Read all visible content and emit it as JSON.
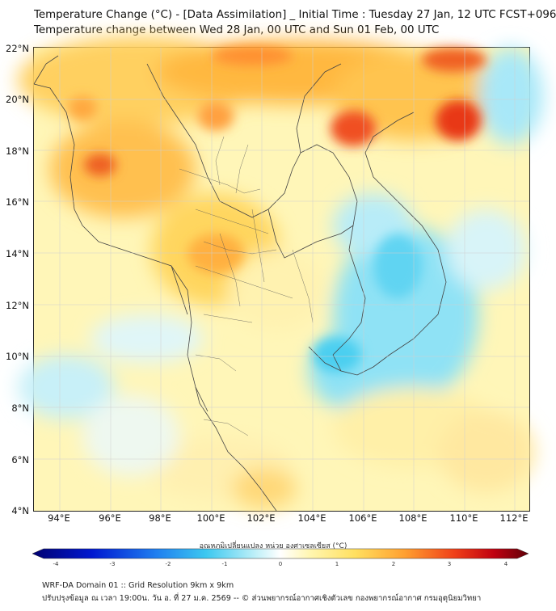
{
  "title_line1": "Temperature Change (°C) - [Data Assimilation] _ Initial Time : Tuesday 27 Jan, 12 UTC FCST+096",
  "title_line2": "Temperature change between Wed 28 Jan, 00 UTC and Sun 01 Feb, 00 UTC",
  "lat_labels": [
    "22°N",
    "20°N",
    "18°N",
    "16°N",
    "14°N",
    "12°N",
    "10°N",
    "8°N",
    "6°N",
    "4°N"
  ],
  "lon_labels": [
    "94°E",
    "96°E",
    "98°E",
    "100°E",
    "102°E",
    "104°E",
    "106°E",
    "108°E",
    "110°E",
    "112°E"
  ],
  "colorbar": {
    "label": "อุณหภูมิเปลี่ยนแปลง หน่วย องศาเซลเซียส (°C)",
    "ticks": [
      "-4",
      "-3",
      "-2",
      "-1",
      "0",
      "1",
      "2",
      "3",
      "4"
    ],
    "range": [
      -4,
      4
    ]
  },
  "footer_line1": "WRF-DA Domain 01 :: Grid Resolution 9km x 9km",
  "footer_line2": "ปรับปรุงข้อมูล ณ เวลา 19:00น. วัน อ. ที่ 27 ม.ค. 2569 -- © ส่วนพยากรณ์อากาศเชิงตัวเลข กองพยากรณ์อากาศ กรมอุตุนิยมวิทยา"
}
